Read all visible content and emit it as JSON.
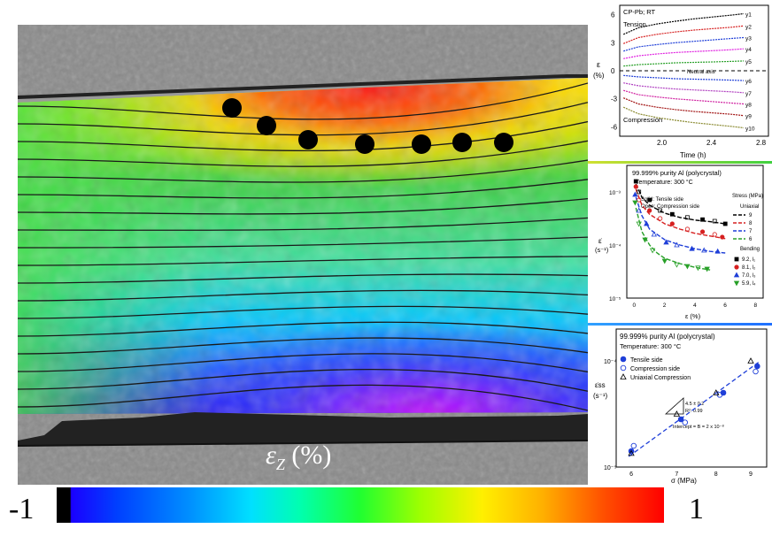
{
  "main_map": {
    "colorbar": {
      "min_label": "-1",
      "max_label": "1"
    },
    "quantity_symbol": "ε",
    "quantity_sub": "Z",
    "quantity_unit": "(%)"
  },
  "chart_data": [
    {
      "type": "line",
      "label_top": "CP-Pb; RT",
      "label_tension": "Tension",
      "label_compression": "Compression",
      "neutral_label": "Neutral axis",
      "ylabel": "ε",
      "ylabel_unit": "(%)",
      "xlabel": "Time (h)",
      "xlim": [
        1.65,
        2.85
      ],
      "ylim": [
        -7,
        7
      ],
      "xticks": [
        "2.0",
        "2.4",
        "2.8"
      ],
      "yticks": [
        "6",
        "3",
        "0",
        "-3",
        "-6"
      ],
      "x": [
        1.68,
        1.8,
        1.95,
        2.1,
        2.25,
        2.4,
        2.55,
        2.65
      ],
      "series": [
        {
          "name": "y1",
          "values": [
            3.9,
            4.6,
            5.0,
            5.3,
            5.55,
            5.75,
            5.95,
            6.1
          ]
        },
        {
          "name": "y2",
          "values": [
            2.9,
            3.55,
            3.9,
            4.15,
            4.35,
            4.5,
            4.65,
            4.8
          ]
        },
        {
          "name": "y3",
          "values": [
            2.1,
            2.55,
            2.8,
            3.0,
            3.15,
            3.3,
            3.45,
            3.55
          ]
        },
        {
          "name": "y4",
          "values": [
            1.3,
            1.6,
            1.8,
            1.95,
            2.05,
            2.15,
            2.25,
            2.35
          ]
        },
        {
          "name": "y5",
          "values": [
            0.5,
            0.65,
            0.75,
            0.85,
            0.9,
            0.95,
            1.0,
            1.05
          ]
        },
        {
          "name": "y6",
          "values": [
            -0.5,
            -0.65,
            -0.75,
            -0.85,
            -0.9,
            -0.95,
            -1.0,
            -1.05
          ]
        },
        {
          "name": "y7",
          "values": [
            -1.3,
            -1.6,
            -1.8,
            -1.95,
            -2.05,
            -2.15,
            -2.25,
            -2.35
          ]
        },
        {
          "name": "y8",
          "values": [
            -2.1,
            -2.55,
            -2.8,
            -3.0,
            -3.15,
            -3.3,
            -3.45,
            -3.55
          ]
        },
        {
          "name": "y9",
          "values": [
            -2.9,
            -3.55,
            -3.9,
            -4.15,
            -4.35,
            -4.5,
            -4.65,
            -4.8
          ]
        },
        {
          "name": "y10",
          "values": [
            -3.9,
            -4.6,
            -5.0,
            -5.3,
            -5.55,
            -5.75,
            -5.95,
            -6.1
          ]
        }
      ],
      "colors": [
        "#000000",
        "#d62020",
        "#1f3fd8",
        "#e020e0",
        "#28a028",
        "#1f3fd8",
        "#b040c0",
        "#d020a0",
        "#a01010",
        "#8a8a30"
      ]
    },
    {
      "type": "scatter",
      "title": "99.999% purity Al (polycrystal)",
      "subtitle": "Temperature: 300 °C",
      "note_solid": "Solid: Tensile side",
      "note_open": "Open: Compression side",
      "ylabel": "ε̇",
      "ylabel_unit": "(s⁻¹)",
      "xlabel": "ε (%)",
      "xlim": [
        -0.5,
        8.5
      ],
      "ylim_log10": [
        -5,
        -2.5
      ],
      "xticks": [
        "0",
        "2",
        "4",
        "6",
        "8"
      ],
      "yticks": [
        "10⁻³",
        "10⁻⁴",
        "10⁻⁵"
      ],
      "legend_uniaxial_title": "Stress (MPa)",
      "legend_uniaxial_sub": "Uniaxial",
      "legend_bending_title": "Bending",
      "uniaxial": [
        {
          "name": "9",
          "color": "#000000",
          "x": [
            0.1,
            0.5,
            1,
            2,
            3,
            4,
            5,
            6
          ],
          "log10y": [
            -2.85,
            -3.1,
            -3.25,
            -3.4,
            -3.48,
            -3.53,
            -3.56,
            -3.6
          ]
        },
        {
          "name": "8",
          "color": "#d62020",
          "x": [
            0.1,
            0.5,
            1,
            2,
            3,
            4,
            5,
            6
          ],
          "log10y": [
            -2.95,
            -3.25,
            -3.42,
            -3.6,
            -3.7,
            -3.78,
            -3.83,
            -3.88
          ]
        },
        {
          "name": "7",
          "color": "#1f3fd8",
          "x": [
            0.1,
            0.5,
            1,
            2,
            3,
            4,
            5,
            6
          ],
          "log10y": [
            -3.1,
            -3.45,
            -3.7,
            -3.9,
            -4.0,
            -4.07,
            -4.12,
            -4.15
          ]
        },
        {
          "name": "6",
          "color": "#28a028",
          "x": [
            0.1,
            0.5,
            1,
            1.5,
            2,
            3,
            4,
            5
          ],
          "log10y": [
            -3.3,
            -3.75,
            -4.0,
            -4.15,
            -4.25,
            -4.35,
            -4.42,
            -4.47
          ]
        }
      ],
      "bending": [
        {
          "name": "9.2, l₁",
          "color": "#000000",
          "marker": "square",
          "x": [
            0.1,
            0.3,
            1,
            1.7,
            2.5,
            3.5,
            4.5,
            5.3,
            6
          ],
          "log10y": [
            -2.8,
            -3.0,
            -3.15,
            -3.35,
            -3.42,
            -3.48,
            -3.52,
            -3.55,
            -3.6
          ]
        },
        {
          "name": "8.1, l₂",
          "color": "#d62020",
          "marker": "circle",
          "x": [
            0.1,
            0.3,
            1,
            1.7,
            2.5,
            3.5,
            4.5,
            5.3,
            5.8
          ],
          "log10y": [
            -2.9,
            -3.15,
            -3.35,
            -3.5,
            -3.6,
            -3.7,
            -3.75,
            -3.8,
            -3.85
          ]
        },
        {
          "name": "7.0, l₃",
          "color": "#1f3fd8",
          "marker": "triangle-up",
          "x": [
            0.05,
            0.3,
            0.8,
            1.3,
            2.1,
            2.8,
            3.8,
            4.6,
            5.5
          ],
          "log10y": [
            -3.05,
            -3.35,
            -3.6,
            -3.8,
            -3.95,
            -4.0,
            -4.07,
            -4.1,
            -4.12
          ]
        },
        {
          "name": "5.9, l₄",
          "color": "#28a028",
          "marker": "triangle-down",
          "x": [
            0.05,
            0.3,
            0.7,
            1.2,
            2.0,
            2.8,
            3.5,
            4.2,
            4.8
          ],
          "log10y": [
            -3.2,
            -3.6,
            -3.9,
            -4.1,
            -4.3,
            -4.37,
            -4.4,
            -4.43,
            -4.45
          ]
        }
      ]
    },
    {
      "type": "scatter",
      "title": "99.999% purity Al (polycrystal)",
      "subtitle": "Temperature: 300 °C",
      "ylabel": "ε̇ss",
      "ylabel_unit": "(s⁻¹)",
      "xlabel": "σ (MPa)",
      "xscale": "log",
      "xlim": [
        5.7,
        9.5
      ],
      "ylim_log10": [
        -5,
        -3.7
      ],
      "xticks": [
        "6",
        "7",
        "8",
        "9"
      ],
      "yticks": [
        "10⁻⁴",
        "10⁻⁵"
      ],
      "fit_slope": "4.5 ± 0.2",
      "fit_r2": "R²: 0.99",
      "intercept": "Intercept = B = 2 x 10⁻⁸",
      "series": [
        {
          "name": "Tensile side",
          "marker": "filled-circle",
          "color": "#1f3fd8",
          "x": [
            6.0,
            7.1,
            8.2,
            9.2
          ],
          "log10y": [
            -4.85,
            -4.55,
            -4.3,
            -4.05
          ]
        },
        {
          "name": "Compression side",
          "marker": "open-circle",
          "color": "#1f3fd8",
          "x": [
            6.05,
            7.2,
            8.1,
            9.15
          ],
          "log10y": [
            -4.8,
            -4.58,
            -4.32,
            -4.1
          ]
        },
        {
          "name": "Uniaxial Compression",
          "marker": "open-triangle",
          "color": "#000000",
          "x": [
            6.0,
            7.0,
            8.0,
            9.0
          ],
          "log10y": [
            -4.87,
            -4.5,
            -4.3,
            -4.0
          ]
        }
      ],
      "fit": {
        "color": "#1f3fd8",
        "x": [
          5.95,
          9.3
        ],
        "log10y": [
          -4.9,
          -4.0
        ]
      }
    }
  ]
}
